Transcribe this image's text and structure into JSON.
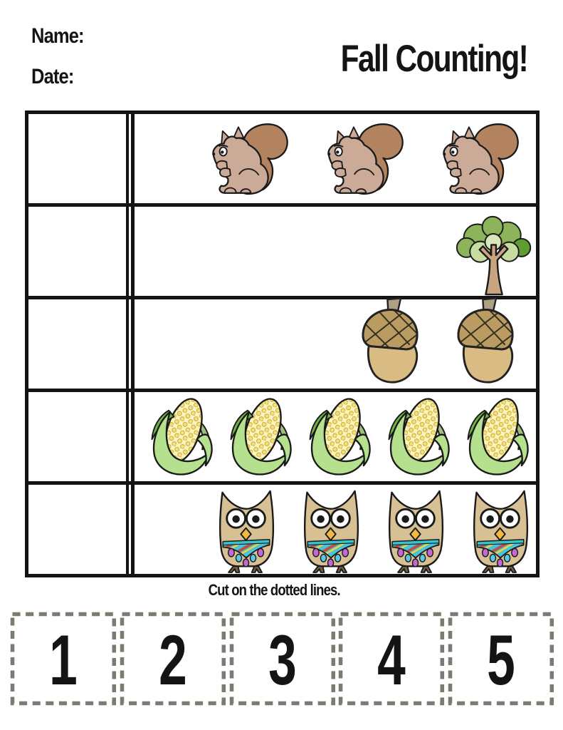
{
  "header": {
    "name_label": "Name:",
    "date_label": "Date:",
    "title": "Fall Counting!"
  },
  "table": {
    "rows": [
      {
        "item": "squirrel",
        "count": 3
      },
      {
        "item": "tree",
        "count": 1
      },
      {
        "item": "acorn",
        "count": 2
      },
      {
        "item": "corn",
        "count": 5
      },
      {
        "item": "owl",
        "count": 4
      }
    ]
  },
  "instructions": {
    "text": "Cut on the dotted lines."
  },
  "cards": {
    "numbers": [
      "1",
      "2",
      "3",
      "4",
      "5"
    ]
  },
  "colors": {
    "ink": "#141414",
    "dash": "#7b7b72",
    "squirrel-body": "#cbaa97",
    "squirrel-tail": "#b3835f",
    "tree-green-mid": "#8db45a",
    "tree-green-light": "#c7dda0",
    "tree-green-pale": "#d8e6ba",
    "tree-green-dark": "#5e9c34",
    "tree-trunk": "#c9a483",
    "acorn-body": "#d9bc84",
    "acorn-cap": "#ba9b61",
    "acorn-stem": "#afa083",
    "corn-kernel": "#f2e17e",
    "corn-kernel-bg": "#fbf3c0",
    "corn-husk": "#b5e18e",
    "corn-husk-dark": "#6fb544",
    "corn-husk-sage": "#9fbe7d",
    "owl-body": "#d8c095",
    "owl-beak": "#f4b83d",
    "owl-band": "#35c4ce",
    "owl-stripe-red": "#c94a44",
    "owl-stripe-yellow": "#e8d14e",
    "owl-stripe-blue": "#4fc3e8",
    "owl-spot-purple": "#c468d6",
    "owl-spot-cyan": "#55cbe8",
    "owl-feet": "#756044"
  }
}
